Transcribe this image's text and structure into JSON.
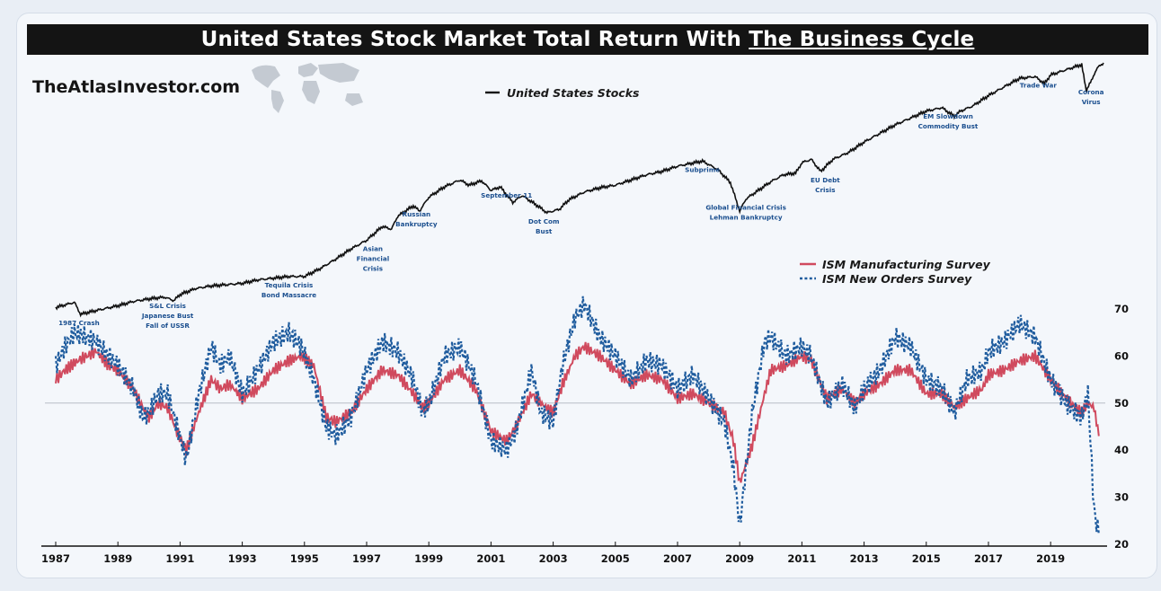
{
  "title": {
    "prefix": "United States Stock Market Total Return With ",
    "underlined": "The Business Cycle"
  },
  "brand": "TheAtlasInvestor.com",
  "colors": {
    "stocks": "#111111",
    "manufacturing": "#d04a5e",
    "new_orders": "#1f5c9e",
    "annotation": "#1b4f8f"
  },
  "chart_data": [
    {
      "type": "line",
      "series": [
        {
          "name": "United States Stocks"
        }
      ],
      "x": [
        1987.0,
        1987.6,
        1987.8,
        1988.0,
        1988.5,
        1989.0,
        1989.5,
        1990.0,
        1990.5,
        1990.8,
        1991.0,
        1991.5,
        1992.0,
        1993.0,
        1993.5,
        1994.0,
        1994.5,
        1995.0,
        1995.5,
        1996.0,
        1996.5,
        1997.0,
        1997.5,
        1997.8,
        1998.0,
        1998.5,
        1998.7,
        1999.0,
        1999.5,
        2000.0,
        2000.3,
        2000.7,
        2001.0,
        2001.3,
        2001.7,
        2002.0,
        2002.5,
        2002.8,
        2003.2,
        2003.5,
        2004.0,
        2004.5,
        2005.0,
        2005.5,
        2006.0,
        2006.5,
        2007.0,
        2007.8,
        2008.3,
        2008.7,
        2009.0,
        2009.2,
        2009.6,
        2010.0,
        2010.4,
        2010.8,
        2011.0,
        2011.3,
        2011.6,
        2012.0,
        2012.5,
        2013.0,
        2013.5,
        2014.0,
        2014.5,
        2015.0,
        2015.5,
        2015.9,
        2016.1,
        2016.5,
        2017.0,
        2017.5,
        2018.0,
        2018.5,
        2018.8,
        2019.0,
        2019.5,
        2020.0,
        2020.15,
        2020.25,
        2020.5,
        2020.7
      ],
      "y": [
        0.3,
        0.36,
        0.22,
        0.24,
        0.28,
        0.32,
        0.37,
        0.4,
        0.42,
        0.38,
        0.45,
        0.52,
        0.55,
        0.58,
        0.62,
        0.64,
        0.66,
        0.66,
        0.75,
        0.86,
        0.98,
        1.08,
        1.24,
        1.21,
        1.36,
        1.48,
        1.42,
        1.58,
        1.7,
        1.78,
        1.72,
        1.77,
        1.66,
        1.7,
        1.52,
        1.6,
        1.48,
        1.4,
        1.44,
        1.55,
        1.64,
        1.69,
        1.72,
        1.78,
        1.84,
        1.88,
        1.94,
        2.0,
        1.9,
        1.75,
        1.42,
        1.56,
        1.66,
        1.76,
        1.84,
        1.86,
        1.98,
        2.02,
        1.88,
        2.02,
        2.1,
        2.22,
        2.32,
        2.42,
        2.5,
        2.58,
        2.62,
        2.52,
        2.58,
        2.64,
        2.76,
        2.86,
        2.96,
        2.98,
        2.9,
        3.0,
        3.06,
        3.12,
        2.8,
        2.9,
        3.08,
        3.14
      ],
      "annotations": [
        {
          "lines": [
            "1987 Crash"
          ],
          "x": 1987.75,
          "pos": "below"
        },
        {
          "lines": [
            "S&L Crisis",
            "Japanese Bust",
            "Fall of USSR"
          ],
          "x": 1990.6,
          "pos": "below"
        },
        {
          "lines": [
            "Tequila Crisis",
            "Bond Massacre"
          ],
          "x": 1994.5,
          "pos": "below"
        },
        {
          "lines": [
            "Asian",
            "Financial",
            "Crisis"
          ],
          "x": 1997.2,
          "pos": "below"
        },
        {
          "lines": [
            "Russian",
            "Bankruptcy"
          ],
          "x": 1998.6,
          "pos": "below"
        },
        {
          "lines": [
            "September 11"
          ],
          "x": 2001.5,
          "pos": "below"
        },
        {
          "lines": [
            "Dot Com",
            "Bust"
          ],
          "x": 2002.7,
          "pos": "below"
        },
        {
          "lines": [
            "Subprime"
          ],
          "x": 2007.8,
          "pos": "below"
        },
        {
          "lines": [
            "Global Financial Crisis",
            "Lehman Bankruptcy"
          ],
          "x": 2009.2,
          "pos": "below"
        },
        {
          "lines": [
            "EU Debt",
            "Crisis"
          ],
          "x": 2011.75,
          "pos": "below"
        },
        {
          "lines": [
            "EM Slowdown",
            "Commodity Bust"
          ],
          "x": 2015.7,
          "pos": "below"
        },
        {
          "lines": [
            "Trade War"
          ],
          "x": 2018.6,
          "pos": "below"
        },
        {
          "lines": [
            "Corona",
            "Virus"
          ],
          "x": 2020.3,
          "pos": "below"
        }
      ]
    },
    {
      "type": "line",
      "ylim": [
        20,
        70
      ],
      "yticks": [
        20,
        30,
        40,
        50,
        60,
        70
      ],
      "reference_line": 50,
      "xticks": [
        "1987",
        "1989",
        "1991",
        "1993",
        "1995",
        "1997",
        "1999",
        "2001",
        "2003",
        "2005",
        "2007",
        "2009",
        "2011",
        "2013",
        "2015",
        "2017",
        "2019"
      ],
      "series": [
        {
          "name": "ISM Manufacturing Survey",
          "style": "solid",
          "x": [
            1987.0,
            1987.3,
            1987.7,
            1988.0,
            1988.3,
            1988.7,
            1989.0,
            1989.5,
            1989.8,
            1990.0,
            1990.3,
            1990.6,
            1990.9,
            1991.2,
            1991.6,
            1992.0,
            1992.3,
            1992.6,
            1993.0,
            1993.5,
            1994.0,
            1994.5,
            1994.9,
            1995.3,
            1995.7,
            1996.0,
            1996.5,
            1997.0,
            1997.5,
            1998.0,
            1998.5,
            1998.8,
            1999.0,
            1999.5,
            2000.0,
            2000.5,
            2001.0,
            2001.5,
            2001.8,
            2002.3,
            2002.6,
            2003.0,
            2003.3,
            2003.7,
            2004.0,
            2004.5,
            2005.0,
            2005.5,
            2006.0,
            2006.5,
            2007.0,
            2007.5,
            2008.0,
            2008.5,
            2008.8,
            2009.0,
            2009.4,
            2009.8,
            2010.0,
            2010.5,
            2011.0,
            2011.3,
            2011.8,
            2012.3,
            2012.7,
            2013.0,
            2013.5,
            2014.0,
            2014.5,
            2015.0,
            2015.5,
            2015.9,
            2016.3,
            2016.8,
            2017.0,
            2017.5,
            2018.0,
            2018.5,
            2019.0,
            2019.5,
            2019.8,
            2020.0,
            2020.2,
            2020.4,
            2020.55
          ],
          "y": [
            55,
            57,
            59,
            60,
            61,
            58,
            57,
            53,
            49,
            47,
            50,
            49,
            44,
            40,
            48,
            55,
            53,
            54,
            51,
            53,
            57,
            59,
            60,
            58,
            47,
            46,
            48,
            53,
            57,
            56,
            52,
            49,
            50,
            55,
            57,
            53,
            44,
            42,
            45,
            52,
            50,
            48,
            54,
            60,
            62,
            60,
            57,
            54,
            56,
            55,
            51,
            52,
            50,
            48,
            42,
            33,
            41,
            52,
            57,
            58,
            60,
            59,
            51,
            53,
            50,
            52,
            54,
            57,
            57,
            52,
            52,
            49,
            51,
            53,
            56,
            57,
            59,
            60,
            55,
            51,
            49,
            48,
            50,
            49,
            43
          ]
        },
        {
          "name": "ISM New Orders Survey",
          "style": "dotted",
          "x": [
            1987.0,
            1987.3,
            1987.6,
            1988.0,
            1988.3,
            1988.7,
            1989.0,
            1989.5,
            1989.8,
            1990.0,
            1990.3,
            1990.6,
            1990.9,
            1991.2,
            1991.6,
            1992.0,
            1992.3,
            1992.6,
            1993.0,
            1993.5,
            1994.0,
            1994.5,
            1994.9,
            1995.3,
            1995.7,
            1996.0,
            1996.5,
            1997.0,
            1997.5,
            1998.0,
            1998.5,
            1998.8,
            1999.0,
            1999.5,
            2000.0,
            2000.5,
            2001.0,
            2001.5,
            2001.8,
            2002.3,
            2002.6,
            2003.0,
            2003.3,
            2003.7,
            2004.0,
            2004.5,
            2005.0,
            2005.5,
            2006.0,
            2006.5,
            2007.0,
            2007.5,
            2008.0,
            2008.5,
            2008.8,
            2009.0,
            2009.4,
            2009.8,
            2010.0,
            2010.5,
            2011.0,
            2011.3,
            2011.8,
            2012.3,
            2012.7,
            2013.0,
            2013.5,
            2014.0,
            2014.5,
            2015.0,
            2015.5,
            2015.9,
            2016.3,
            2016.8,
            2017.0,
            2017.5,
            2018.0,
            2018.5,
            2019.0,
            2019.5,
            2019.8,
            2020.0,
            2020.2,
            2020.4,
            2020.55
          ],
          "y": [
            58,
            62,
            65,
            64,
            63,
            60,
            58,
            53,
            47,
            48,
            52,
            52,
            45,
            38,
            52,
            62,
            58,
            60,
            52,
            57,
            63,
            65,
            62,
            55,
            45,
            43,
            47,
            57,
            63,
            61,
            55,
            48,
            50,
            60,
            62,
            55,
            42,
            40,
            44,
            57,
            48,
            46,
            58,
            68,
            71,
            64,
            60,
            55,
            59,
            58,
            53,
            56,
            51,
            46,
            36,
            24,
            48,
            63,
            64,
            60,
            62,
            60,
            50,
            54,
            49,
            53,
            57,
            64,
            62,
            55,
            53,
            48,
            55,
            57,
            61,
            63,
            67,
            64,
            55,
            50,
            48,
            47,
            52,
            27,
            22
          ]
        }
      ]
    }
  ]
}
